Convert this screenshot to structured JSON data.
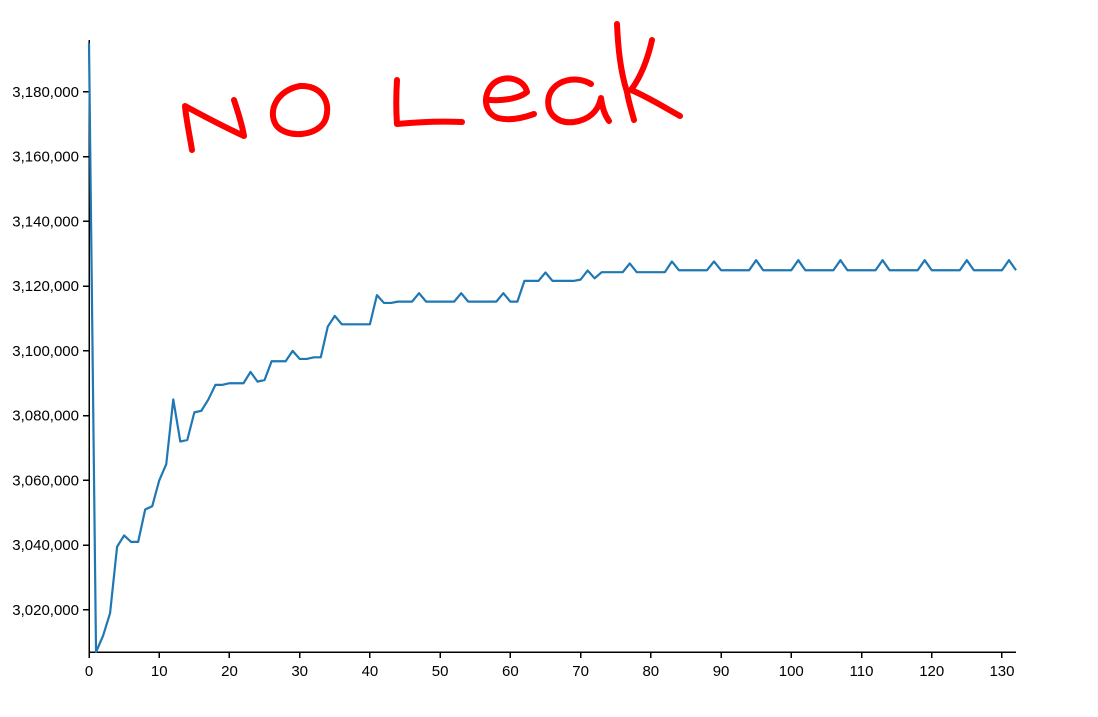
{
  "chart_data": {
    "type": "line",
    "title": "",
    "xlabel": "",
    "ylabel": "",
    "grid": false,
    "xlim": [
      0,
      132
    ],
    "ylim": [
      3007000,
      3196000
    ],
    "x_ticks": [
      0,
      10,
      20,
      30,
      40,
      50,
      60,
      70,
      80,
      90,
      100,
      110,
      120,
      130
    ],
    "y_ticks": [
      3020000,
      3040000,
      3060000,
      3080000,
      3100000,
      3120000,
      3140000,
      3160000,
      3180000
    ],
    "y_tick_labels": [
      "3,020,000",
      "3,040,000",
      "3,060,000",
      "3,080,000",
      "3,100,000",
      "3,120,000",
      "3,140,000",
      "3,160,000",
      "3,180,000"
    ],
    "series": [
      {
        "color": "#1f77b4",
        "x": [
          0,
          1,
          2,
          3,
          4,
          5,
          6,
          7,
          8,
          9,
          10,
          11,
          12,
          13,
          14,
          15,
          16,
          17,
          18,
          19,
          20,
          21,
          22,
          23,
          24,
          25,
          26,
          27,
          28,
          29,
          30,
          31,
          32,
          33,
          34,
          35,
          36,
          37,
          38,
          39,
          40,
          41,
          42,
          43,
          44,
          45,
          46,
          47,
          48,
          49,
          50,
          51,
          52,
          53,
          54,
          55,
          56,
          57,
          58,
          59,
          60,
          61,
          62,
          63,
          64,
          65,
          66,
          67,
          68,
          69,
          70,
          71,
          72,
          73,
          74,
          75,
          76,
          77,
          78,
          79,
          80,
          81,
          82,
          83,
          84,
          85,
          86,
          87,
          88,
          89,
          90,
          91,
          92,
          93,
          94,
          95,
          96,
          97,
          98,
          99,
          100,
          101,
          102,
          103,
          104,
          105,
          106,
          107,
          108,
          109,
          110,
          111,
          112,
          113,
          114,
          115,
          116,
          117,
          118,
          119,
          120,
          121,
          122,
          123,
          124,
          125,
          126,
          127,
          128,
          129,
          130,
          131,
          132
        ],
        "values": [
          3195000,
          3007000,
          3012000,
          3019000,
          3039500,
          3043000,
          3041000,
          3041000,
          3051000,
          3052000,
          3060000,
          3065000,
          3085000,
          3072000,
          3072500,
          3081000,
          3081500,
          3085000,
          3089500,
          3089500,
          3090000,
          3090000,
          3090000,
          3093500,
          3090500,
          3091000,
          3096800,
          3096800,
          3096800,
          3100000,
          3097500,
          3097500,
          3098000,
          3098000,
          3107500,
          3110800,
          3108200,
          3108200,
          3108200,
          3108200,
          3108200,
          3117200,
          3114800,
          3114800,
          3115200,
          3115200,
          3115200,
          3117800,
          3115200,
          3115200,
          3115200,
          3115200,
          3115200,
          3117800,
          3115200,
          3115200,
          3115200,
          3115200,
          3115200,
          3117800,
          3115200,
          3115200,
          3121600,
          3121600,
          3121600,
          3124200,
          3121600,
          3121600,
          3121600,
          3121600,
          3122000,
          3124800,
          3122400,
          3124300,
          3124300,
          3124300,
          3124300,
          3127000,
          3124300,
          3124300,
          3124300,
          3124300,
          3124300,
          3127600,
          3124900,
          3124900,
          3124900,
          3124900,
          3124900,
          3127600,
          3124900,
          3124900,
          3124900,
          3124900,
          3124900,
          3128000,
          3124900,
          3124900,
          3124900,
          3124900,
          3124900,
          3128000,
          3124900,
          3124900,
          3124900,
          3124900,
          3124900,
          3128000,
          3124900,
          3124900,
          3124900,
          3124900,
          3124900,
          3128000,
          3124900,
          3124900,
          3124900,
          3124900,
          3124900,
          3128000,
          3124900,
          3124900,
          3124900,
          3124900,
          3124900,
          3128000,
          3124900,
          3124900,
          3124900,
          3124900,
          3124900,
          3128000,
          3124900
        ]
      }
    ],
    "annotation": {
      "text": "No Leak",
      "color": "#ff0000",
      "style": "handwritten"
    }
  }
}
